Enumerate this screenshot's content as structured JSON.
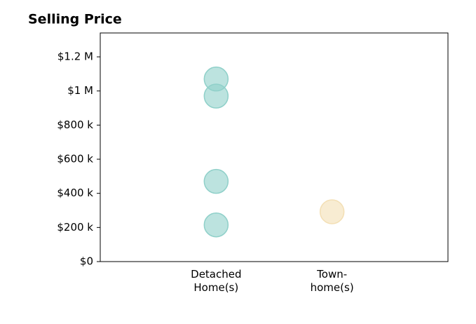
{
  "chart_data": {
    "type": "scatter",
    "title": "Selling Price",
    "xlim": [
      0,
      3
    ],
    "xticks": [
      {
        "value": 1,
        "label": "Detached\nHome(s)"
      },
      {
        "value": 2,
        "label": "Town-\nhome(s)"
      }
    ],
    "ylim": [
      0,
      1340000
    ],
    "yticks": [
      {
        "value": 0,
        "label": "$0"
      },
      {
        "value": 200000,
        "label": "$200 k"
      },
      {
        "value": 400000,
        "label": "$400 k"
      },
      {
        "value": 600000,
        "label": "$600 k"
      },
      {
        "value": 800000,
        "label": "$800 k"
      },
      {
        "value": 1000000,
        "label": "$1 M"
      },
      {
        "value": 1200000,
        "label": "$1.2 M"
      }
    ],
    "series": [
      {
        "color": "#8fd0c9",
        "x": [
          1,
          1,
          1,
          1
        ],
        "values": [
          1070000,
          970000,
          470000,
          215000
        ]
      },
      {
        "color": "#f3dfb4",
        "x": [
          2
        ],
        "values": [
          292000
        ]
      }
    ]
  }
}
